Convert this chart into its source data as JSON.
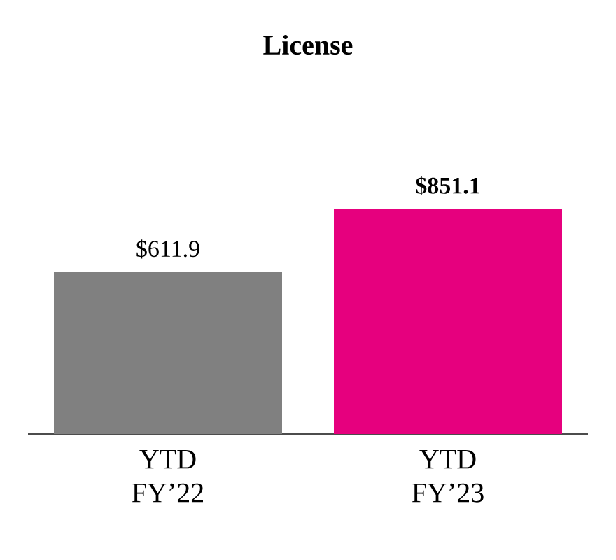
{
  "chart_data": {
    "type": "bar",
    "title": "License",
    "categories": [
      "YTD FY’22",
      "YTD FY’23"
    ],
    "values": [
      611.9,
      851.1
    ],
    "colors": [
      "#808080",
      "#e6007e"
    ],
    "value_labels": [
      "$611.9",
      "**$851.1**"
    ]
  }
}
